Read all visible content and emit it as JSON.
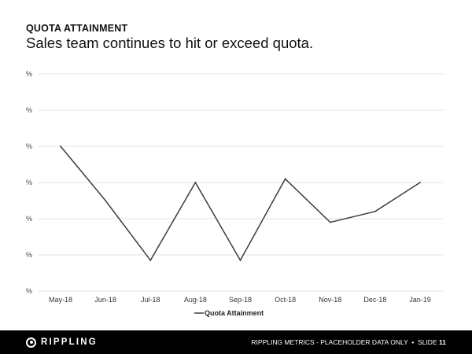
{
  "header": {
    "title": "QUOTA ATTAINMENT",
    "subtitle": "Sales team continues to hit or exceed quota."
  },
  "chart_data": {
    "type": "line",
    "categories": [
      "May-18",
      "Jun-18",
      "Jul-18",
      "Aug-18",
      "Sep-18",
      "Oct-18",
      "Nov-18",
      "Dec-18",
      "Jan-19"
    ],
    "series": [
      {
        "name": "Quota Attainment",
        "values": [
          4.0,
          2.5,
          0.85,
          3.0,
          0.85,
          3.1,
          1.9,
          2.2,
          3.0
        ]
      }
    ],
    "y_tick_labels": [
      "%",
      "%",
      "%",
      "%",
      "%",
      "%",
      "%"
    ],
    "ylim": [
      0,
      6
    ],
    "grid": true,
    "legend_position": "bottom",
    "line_color": "#3c3c3c"
  },
  "footer": {
    "logo_text": "RIPPLING",
    "caption": "RIPPLING METRICS - PLACEHOLDER DATA ONLY",
    "separator": "•",
    "slide_label": "SLIDE",
    "slide_number": "11"
  }
}
